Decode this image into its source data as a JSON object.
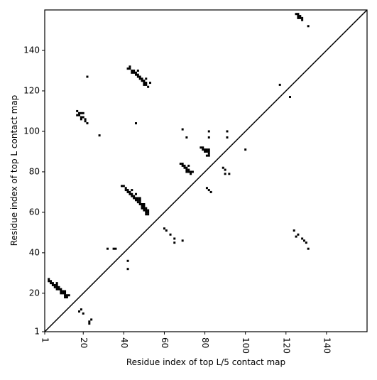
{
  "chart_data": {
    "type": "scatter",
    "xlabel": "Residue index of top L/5 contact map",
    "ylabel": "Residue index of top L contact map",
    "xlim": [
      1,
      160
    ],
    "ylim": [
      1,
      160
    ],
    "xticks": [
      1,
      20,
      40,
      60,
      80,
      100,
      120,
      140
    ],
    "yticks": [
      1,
      20,
      40,
      60,
      80,
      100,
      120,
      140
    ],
    "color": "#000000",
    "diagonal": true,
    "series": [
      {
        "color": "#000000",
        "x": [
          3,
          3,
          4,
          4,
          5,
          5,
          6,
          6,
          7,
          7,
          7,
          7,
          8,
          8,
          9,
          9,
          10,
          10,
          11,
          11,
          11,
          11,
          12,
          12,
          13,
          9,
          19,
          18,
          20,
          24,
          23,
          23,
          32,
          35,
          36,
          42,
          42,
          39,
          40,
          41,
          41,
          42,
          42,
          43,
          43,
          44,
          44,
          44,
          45,
          45,
          46,
          46,
          46,
          47,
          47,
          47,
          48,
          48,
          48,
          48,
          49,
          49,
          49,
          50,
          50,
          50,
          50,
          51,
          51,
          51,
          52,
          52,
          52,
          51,
          42,
          43,
          43,
          44,
          44,
          45,
          45,
          46,
          46,
          47,
          47,
          47,
          48,
          48,
          49,
          49,
          50,
          50,
          50,
          51,
          51,
          51,
          52,
          53,
          46,
          17,
          17,
          18,
          18,
          19,
          19,
          19,
          20,
          20,
          21,
          21,
          22,
          22,
          28,
          60,
          61,
          63,
          65,
          65,
          69,
          68,
          69,
          69,
          70,
          70,
          71,
          71,
          71,
          72,
          72,
          72,
          73,
          73,
          74,
          69,
          71,
          78,
          79,
          79,
          80,
          80,
          81,
          81,
          82,
          82,
          82,
          82,
          81,
          82,
          82,
          81,
          82,
          83,
          89,
          90,
          90,
          92,
          91,
          91,
          100,
          117,
          122,
          124,
          125,
          126,
          128,
          129,
          130,
          131,
          125,
          126,
          126,
          126,
          127,
          127,
          128,
          128,
          131
        ],
        "y": [
          27,
          26,
          26,
          25,
          25,
          24,
          24,
          23,
          25,
          24,
          23,
          22,
          23,
          22,
          22,
          21,
          21,
          20,
          21,
          20,
          19,
          18,
          19,
          18,
          19,
          20,
          12,
          11,
          10,
          7,
          6,
          5,
          42,
          42,
          42,
          36,
          32,
          73,
          73,
          72,
          71,
          71,
          70,
          70,
          69,
          71,
          69,
          68,
          68,
          67,
          69,
          67,
          66,
          67,
          66,
          65,
          67,
          66,
          65,
          64,
          64,
          63,
          62,
          64,
          63,
          62,
          61,
          62,
          61,
          60,
          61,
          60,
          59,
          59,
          131,
          132,
          131,
          130,
          129,
          130,
          129,
          128,
          129,
          128,
          127,
          130,
          127,
          126,
          126,
          125,
          125,
          124,
          123,
          124,
          123,
          126,
          122,
          124,
          104,
          110,
          108,
          109,
          108,
          109,
          107,
          106,
          109,
          107,
          106,
          105,
          104,
          127,
          98,
          52,
          51,
          49,
          47,
          45,
          46,
          84,
          84,
          83,
          83,
          82,
          82,
          81,
          80,
          83,
          81,
          80,
          80,
          79,
          80,
          101,
          97,
          92,
          92,
          91,
          91,
          90,
          90,
          91,
          91,
          90,
          89,
          88,
          88,
          100,
          97,
          72,
          71,
          70,
          82,
          81,
          79,
          79,
          100,
          97,
          91,
          123,
          117,
          51,
          48,
          49,
          47,
          46,
          45,
          42,
          158,
          158,
          157,
          156,
          157,
          156,
          156,
          155,
          152
        ]
      }
    ]
  }
}
